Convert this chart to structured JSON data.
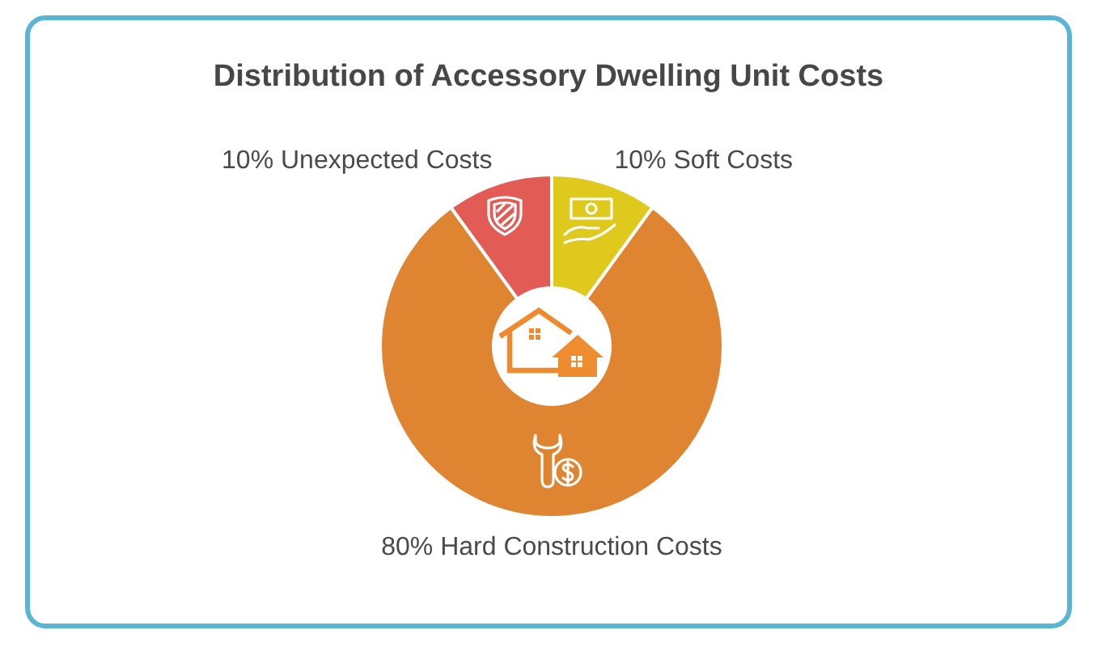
{
  "chart_data": {
    "type": "donut",
    "title": "Distribution of Accessory Dwelling Unit Costs",
    "categories": [
      "Soft Costs",
      "Hard Construction Costs",
      "Unexpected Costs"
    ],
    "values": [
      10,
      80,
      10
    ],
    "colors": [
      "#dfc91c",
      "#df8431",
      "#e25b55"
    ],
    "value_labels": [
      "10%",
      "80%",
      "10%"
    ]
  }
}
